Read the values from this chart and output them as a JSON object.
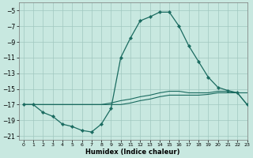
{
  "xlabel": "Humidex (Indice chaleur)",
  "xlim": [
    -0.5,
    23
  ],
  "ylim": [
    -21.5,
    -4.0
  ],
  "yticks": [
    -5,
    -7,
    -9,
    -11,
    -13,
    -15,
    -17,
    -19,
    -21
  ],
  "xticks": [
    0,
    1,
    2,
    3,
    4,
    5,
    6,
    7,
    8,
    9,
    10,
    11,
    12,
    13,
    14,
    15,
    16,
    17,
    18,
    19,
    20,
    21,
    22,
    23
  ],
  "bg_color": "#c8e8e0",
  "grid_color": "#a0c8c0",
  "line_color": "#1a6b60",
  "line1_x": [
    0,
    1,
    2,
    3,
    4,
    5,
    6,
    7,
    8,
    9,
    10,
    11,
    12,
    13,
    14,
    15,
    16,
    17,
    18,
    19,
    20,
    21,
    22,
    23
  ],
  "line1_y": [
    -17,
    -17,
    -17,
    -17,
    -17,
    -17,
    -17,
    -17,
    -17,
    -17,
    -17,
    -16.8,
    -16.5,
    -16.3,
    -16.0,
    -15.8,
    -15.8,
    -15.8,
    -15.8,
    -15.7,
    -15.5,
    -15.5,
    -15.5,
    -15.5
  ],
  "line2_x": [
    0,
    1,
    2,
    3,
    4,
    5,
    6,
    7,
    8,
    9,
    10,
    11,
    12,
    13,
    14,
    15,
    16,
    17,
    18,
    19,
    20,
    21,
    22,
    23
  ],
  "line2_y": [
    -17,
    -17,
    -17,
    -17,
    -17,
    -17,
    -17,
    -17,
    -17,
    -16.8,
    -16.5,
    -16.3,
    -16.0,
    -15.8,
    -15.5,
    -15.3,
    -15.3,
    -15.5,
    -15.5,
    -15.5,
    -15.3,
    -15.3,
    -15.5,
    -17.0
  ],
  "line3_x": [
    0,
    1,
    2,
    3,
    4,
    5,
    6,
    7,
    8,
    9,
    10,
    11,
    12,
    13,
    14,
    15,
    16,
    17,
    18,
    19,
    20,
    21,
    22,
    23
  ],
  "line3_y": [
    -17,
    -17,
    -18,
    -18.5,
    -19.5,
    -19.8,
    -20.3,
    -20.5,
    -19.5,
    -17.5,
    -11.0,
    -8.5,
    -6.3,
    -5.8,
    -5.2,
    -5.2,
    -7.0,
    -9.5,
    -11.5,
    -13.5,
    -14.8,
    -15.2,
    -15.5,
    -17.0
  ]
}
